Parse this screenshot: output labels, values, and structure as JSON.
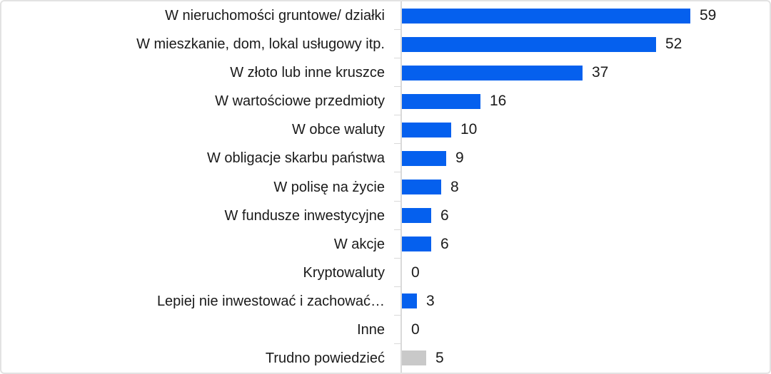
{
  "chart_data": {
    "type": "bar",
    "orientation": "horizontal",
    "title": "",
    "xlabel": "",
    "ylabel": "",
    "categories": [
      "W nieruchomości gruntowe/ działki",
      "W mieszkanie, dom, lokal usługowy itp.",
      "W złoto lub inne kruszce",
      "W wartościowe przedmioty",
      "W obce waluty",
      "W obligacje skarbu państwa",
      "W polisę na życie",
      "W fundusze inwestycyjne",
      "W akcje",
      "Kryptowaluty",
      "Lepiej nie inwestować i zachować…",
      "Inne",
      "Trudno powiedzieć"
    ],
    "values": [
      59,
      52,
      37,
      16,
      10,
      9,
      8,
      6,
      6,
      0,
      3,
      0,
      5
    ],
    "colors": [
      "#0560EE",
      "#0560EE",
      "#0560EE",
      "#0560EE",
      "#0560EE",
      "#0560EE",
      "#0560EE",
      "#0560EE",
      "#0560EE",
      "#0560EE",
      "#0560EE",
      "#0560EE",
      "#C9C9C9"
    ],
    "xlim": [
      0,
      75
    ],
    "grid": false,
    "legend": null,
    "value_labels_shown": true
  },
  "style": {
    "bar_color": "#0560EE",
    "muted_bar_color": "#C9C9C9",
    "axis_color": "#D9D9D9",
    "text_color": "#1A1A1A",
    "background": "#FFFFFF",
    "border_color": "#E3E3E3"
  }
}
